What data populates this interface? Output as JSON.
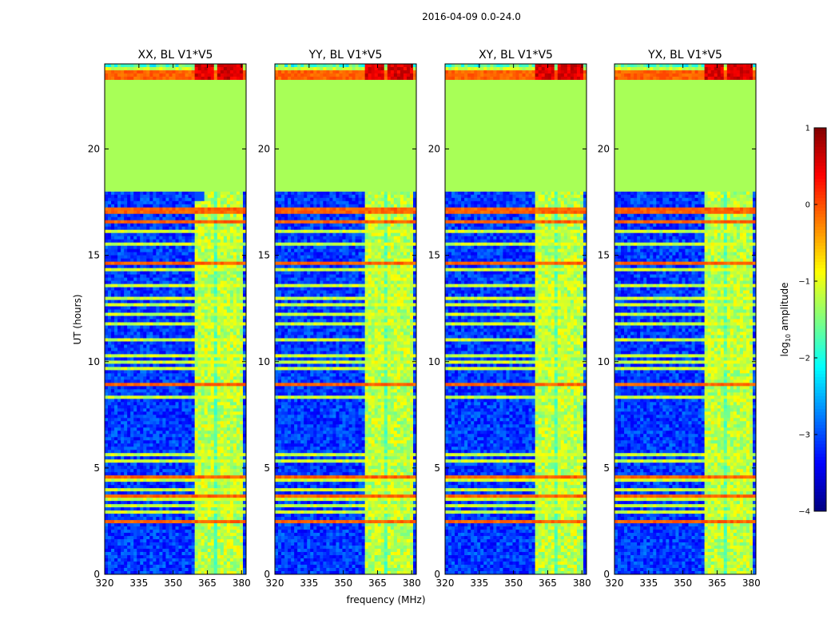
{
  "suptitle": "2016-04-09 0.0-24.0",
  "chart_data": {
    "type": "heatmap",
    "title": "2016-04-09 0.0-24.0",
    "xlabel": "frequency (MHz)",
    "ylabel": "UT (hours)",
    "xlim": [
      320,
      382
    ],
    "ylim": [
      0,
      24
    ],
    "xticks": [
      320,
      335,
      350,
      365,
      380
    ],
    "yticks": [
      0,
      5,
      10,
      15,
      20
    ],
    "panels": [
      {
        "title": "XX, BL V1*V5",
        "pol": "XX"
      },
      {
        "title": "YY, BL V1*V5",
        "pol": "YY"
      },
      {
        "title": "XY, BL V1*V5",
        "pol": "XY"
      },
      {
        "title": "YX, BL V1*V5",
        "pol": "YX"
      }
    ],
    "colorbar": {
      "label": "log10 amplitude",
      "label_text": "log",
      "label_sub": "10",
      "label_suffix": " amplitude",
      "range": [
        -4,
        1
      ],
      "ticks": [
        1,
        0,
        -1,
        -2,
        -3,
        -4
      ],
      "tick_labels": [
        "1",
        "0",
        "−1",
        "−2",
        "−3",
        "−4"
      ],
      "colormap": "jet"
    },
    "flagged_block_ut": [
      18.0,
      23.2
    ],
    "flagged_value": -1.3,
    "rfi_band_mhz": [
      360,
      380
    ],
    "rfi_columns_mhz": [
      [
        360,
        364
      ],
      [
        364,
        368
      ],
      [
        369,
        373
      ],
      [
        373,
        377
      ],
      [
        377,
        380
      ]
    ],
    "bright_rows_ut": [
      2.5,
      3.7,
      4.55,
      8.95,
      14.6,
      16.6,
      17.1,
      23.3,
      23.55
    ],
    "medium_rows_ut": [
      1.2,
      1.65,
      2.9,
      3.25,
      3.55,
      4.0,
      4.4,
      5.3,
      5.6,
      6.3,
      6.6,
      7.2,
      7.5,
      7.8,
      8.3,
      9.7,
      10.0,
      10.3,
      11.0,
      11.8,
      12.2,
      12.7,
      13.0,
      13.6,
      14.3,
      15.0,
      15.5,
      16.1,
      17.4,
      23.8
    ]
  }
}
